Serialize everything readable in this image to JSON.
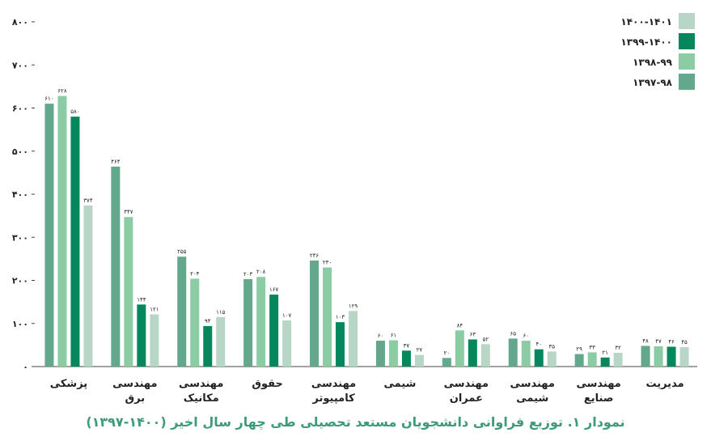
{
  "chart_data": {
    "type": "bar",
    "title": "نمودار ۱. توزیع فراوانی دانشجویان مستعد تحصیلی طی چهار سال اخیر (۱۴۰۰-۱۳۹۷)",
    "ylim": [
      0,
      800
    ],
    "y_ticks": [
      "۰",
      "۱۰۰",
      "۲۰۰",
      "۳۰۰",
      "۴۰۰",
      "۵۰۰",
      "۶۰۰",
      "۷۰۰",
      "۸۰۰"
    ],
    "legend_position": "top-right",
    "categories": [
      [
        "پزشکی"
      ],
      [
        "مهندسی",
        "برق"
      ],
      [
        "مهندسی",
        "مکانیک"
      ],
      [
        "حقوق"
      ],
      [
        "مهندسی",
        "کامپیوتر"
      ],
      [
        "شیمی"
      ],
      [
        "مهندسی",
        "عمران"
      ],
      [
        "مهندسی",
        "شیمی"
      ],
      [
        "مهندسی",
        "صنایع"
      ],
      [
        "مدیریت"
      ]
    ],
    "series": [
      {
        "name": "۱۳۹۷-۹۸",
        "color": "#63a88c",
        "values": [
          610,
          464,
          255,
          203,
          246,
          60,
          20,
          65,
          29,
          48
        ],
        "labels": [
          "۶۱۰",
          "۴۶۴",
          "۲۵۵",
          "۲۰۳",
          "۲۴۶",
          "۶۰",
          "۲۰",
          "۶۵",
          "۲۹",
          "۴۸"
        ]
      },
      {
        "name": "۱۳۹۸-۹۹",
        "color": "#8ccca4",
        "values": [
          628,
          347,
          204,
          208,
          230,
          61,
          84,
          60,
          33,
          47
        ],
        "labels": [
          "۶۲۸",
          "۳۴۷",
          "۲۰۴",
          "۲۰۸",
          "۲۳۰",
          "۶۱",
          "۸۴",
          "۶۰",
          "۳۳",
          "۴۷"
        ]
      },
      {
        "name": "۱۳۹۹-۱۴۰۰",
        "color": "#04875c",
        "values": [
          580,
          144,
          94,
          167,
          103,
          37,
          63,
          40,
          21,
          46
        ],
        "labels": [
          "۵۸۰",
          "۱۴۴",
          "۹۴",
          "۱۶۷",
          "۱۰۳",
          "۳۷",
          "۶۳",
          "۴۰",
          "۲۱",
          "۴۶"
        ]
      },
      {
        "name": "۱۴۰۰-۱۴۰۱",
        "color": "#b8d6c6",
        "values": [
          374,
          121,
          115,
          107,
          129,
          27,
          52,
          35,
          32,
          45
        ],
        "labels": [
          "۳۷۴",
          "۱۲۱",
          "۱۱۵",
          "۱۰۷",
          "۱۲۹",
          "۲۷",
          "۵۲",
          "۳۵",
          "۳۲",
          "۴۵"
        ]
      }
    ],
    "legend_order": [
      "۱۴۰۰-۱۴۰۱",
      "۱۳۹۹-۱۴۰۰",
      "۱۳۹۸-۹۹",
      "۱۳۹۷-۹۸"
    ]
  }
}
